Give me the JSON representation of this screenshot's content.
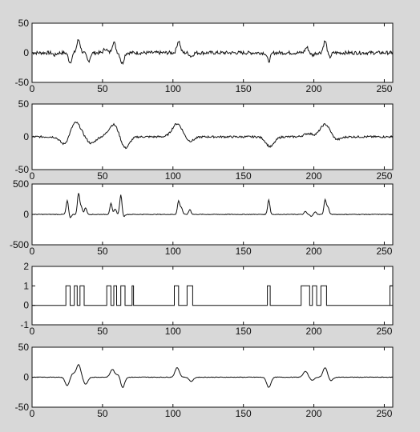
{
  "colors": {
    "background": "#d8d8d8",
    "axes_face": "#ffffff",
    "line": "#111111"
  },
  "chart_data": [
    {
      "type": "line",
      "xlim": [
        0,
        256
      ],
      "ylim": [
        -50,
        50
      ],
      "xticks": [
        "0",
        "50",
        "100",
        "150",
        "200",
        "250"
      ],
      "yticks": [
        "50",
        "0",
        "-50"
      ],
      "noise": 3,
      "events": [
        {
          "x": 16,
          "v": -4,
          "w": 1.2
        },
        {
          "x": 27,
          "v": -16,
          "w": 1.2
        },
        {
          "x": 33,
          "v": 22,
          "w": 1.2
        },
        {
          "x": 40,
          "v": -14,
          "w": 1.2
        },
        {
          "x": 52,
          "v": 7,
          "w": 1.2
        },
        {
          "x": 58,
          "v": 18,
          "w": 1.2
        },
        {
          "x": 64,
          "v": -18,
          "w": 1.2
        },
        {
          "x": 104,
          "v": 20,
          "w": 1.2
        },
        {
          "x": 113,
          "v": -6,
          "w": 1.2
        },
        {
          "x": 168,
          "v": -14,
          "w": 1.2
        },
        {
          "x": 195,
          "v": 9,
          "w": 1.2
        },
        {
          "x": 199,
          "v": -4,
          "w": 1.2
        },
        {
          "x": 208,
          "v": 20,
          "w": 1.2
        },
        {
          "x": 211,
          "v": -8,
          "w": 1.2
        }
      ]
    },
    {
      "type": "line",
      "xlim": [
        0,
        256
      ],
      "ylim": [
        -50,
        50
      ],
      "xticks": [
        "0",
        "50",
        "100",
        "150",
        "200",
        "250"
      ],
      "yticks": [
        "50",
        "0",
        "-50"
      ],
      "noise": 1.5,
      "events": [
        {
          "x": 23,
          "v": -12,
          "w": 3
        },
        {
          "x": 31,
          "v": 22,
          "w": 3.5
        },
        {
          "x": 42,
          "v": -10,
          "w": 3
        },
        {
          "x": 58,
          "v": 19,
          "w": 3.5
        },
        {
          "x": 66,
          "v": -18,
          "w": 3
        },
        {
          "x": 103,
          "v": 20,
          "w": 3.5
        },
        {
          "x": 112,
          "v": -7,
          "w": 3
        },
        {
          "x": 169,
          "v": -15,
          "w": 3
        },
        {
          "x": 196,
          "v": 5,
          "w": 3
        },
        {
          "x": 208,
          "v": 19,
          "w": 3.5
        },
        {
          "x": 216,
          "v": -5,
          "w": 3
        }
      ]
    },
    {
      "type": "line",
      "xlim": [
        0,
        256
      ],
      "ylim": [
        -500,
        500
      ],
      "xticks": [
        "0",
        "50",
        "100",
        "150",
        "200",
        "250"
      ],
      "yticks": [
        "500",
        "0",
        "-500"
      ],
      "noise": 5,
      "events": [
        {
          "x": 25,
          "v": 230,
          "w": 0.8
        },
        {
          "x": 27,
          "v": -60,
          "w": 0.8
        },
        {
          "x": 33,
          "v": 350,
          "w": 0.8
        },
        {
          "x": 35,
          "v": 120,
          "w": 0.8
        },
        {
          "x": 38,
          "v": 110,
          "w": 0.8
        },
        {
          "x": 56,
          "v": 180,
          "w": 0.8
        },
        {
          "x": 59,
          "v": 90,
          "w": 0.8
        },
        {
          "x": 63,
          "v": 320,
          "w": 0.8
        },
        {
          "x": 65,
          "v": -40,
          "w": 0.8
        },
        {
          "x": 104,
          "v": 220,
          "w": 0.8
        },
        {
          "x": 106,
          "v": 110,
          "w": 0.8
        },
        {
          "x": 112,
          "v": 80,
          "w": 0.8
        },
        {
          "x": 168,
          "v": 240,
          "w": 0.8
        },
        {
          "x": 194,
          "v": 50,
          "w": 0.8
        },
        {
          "x": 198,
          "v": -30,
          "w": 0.8
        },
        {
          "x": 201,
          "v": 40,
          "w": 0.8
        },
        {
          "x": 208,
          "v": 240,
          "w": 0.8
        },
        {
          "x": 210,
          "v": 120,
          "w": 0.8
        }
      ]
    },
    {
      "type": "line",
      "xlim": [
        0,
        256
      ],
      "ylim": [
        -1,
        2
      ],
      "xticks": [
        "0",
        "50",
        "100",
        "150",
        "200",
        "250"
      ],
      "yticks": [
        "2",
        "1",
        "0",
        "-1"
      ],
      "step": true,
      "pulses": [
        [
          24,
          27
        ],
        [
          30,
          32
        ],
        [
          34,
          37
        ],
        [
          53,
          56
        ],
        [
          58,
          60
        ],
        [
          63,
          66
        ],
        [
          71,
          72
        ],
        [
          101,
          104
        ],
        [
          110,
          114
        ],
        [
          167,
          169
        ],
        [
          191,
          197
        ],
        [
          199,
          202
        ],
        [
          205,
          209
        ],
        [
          254,
          256
        ]
      ]
    },
    {
      "type": "line",
      "xlim": [
        0,
        256
      ],
      "ylim": [
        -50,
        50
      ],
      "xticks": [
        "0",
        "50",
        "100",
        "150",
        "200",
        "250"
      ],
      "yticks": [
        "50",
        "0",
        "-50"
      ],
      "noise": 0.4,
      "events": [
        {
          "x": 25,
          "v": -14,
          "w": 1.5
        },
        {
          "x": 29,
          "v": 6,
          "w": 1.5
        },
        {
          "x": 33,
          "v": 21,
          "w": 1.5
        },
        {
          "x": 38,
          "v": -12,
          "w": 1.5
        },
        {
          "x": 57,
          "v": 13,
          "w": 1.5
        },
        {
          "x": 62,
          "v": 8,
          "w": 1.5
        },
        {
          "x": 64,
          "v": -20,
          "w": 1.5
        },
        {
          "x": 103,
          "v": 16,
          "w": 1.5
        },
        {
          "x": 113,
          "v": -7,
          "w": 1.5
        },
        {
          "x": 168,
          "v": -17,
          "w": 1.5
        },
        {
          "x": 194,
          "v": 10,
          "w": 1.5
        },
        {
          "x": 199,
          "v": -5,
          "w": 1.5
        },
        {
          "x": 208,
          "v": 16,
          "w": 1.5
        },
        {
          "x": 212,
          "v": -6,
          "w": 1.5
        }
      ]
    }
  ]
}
